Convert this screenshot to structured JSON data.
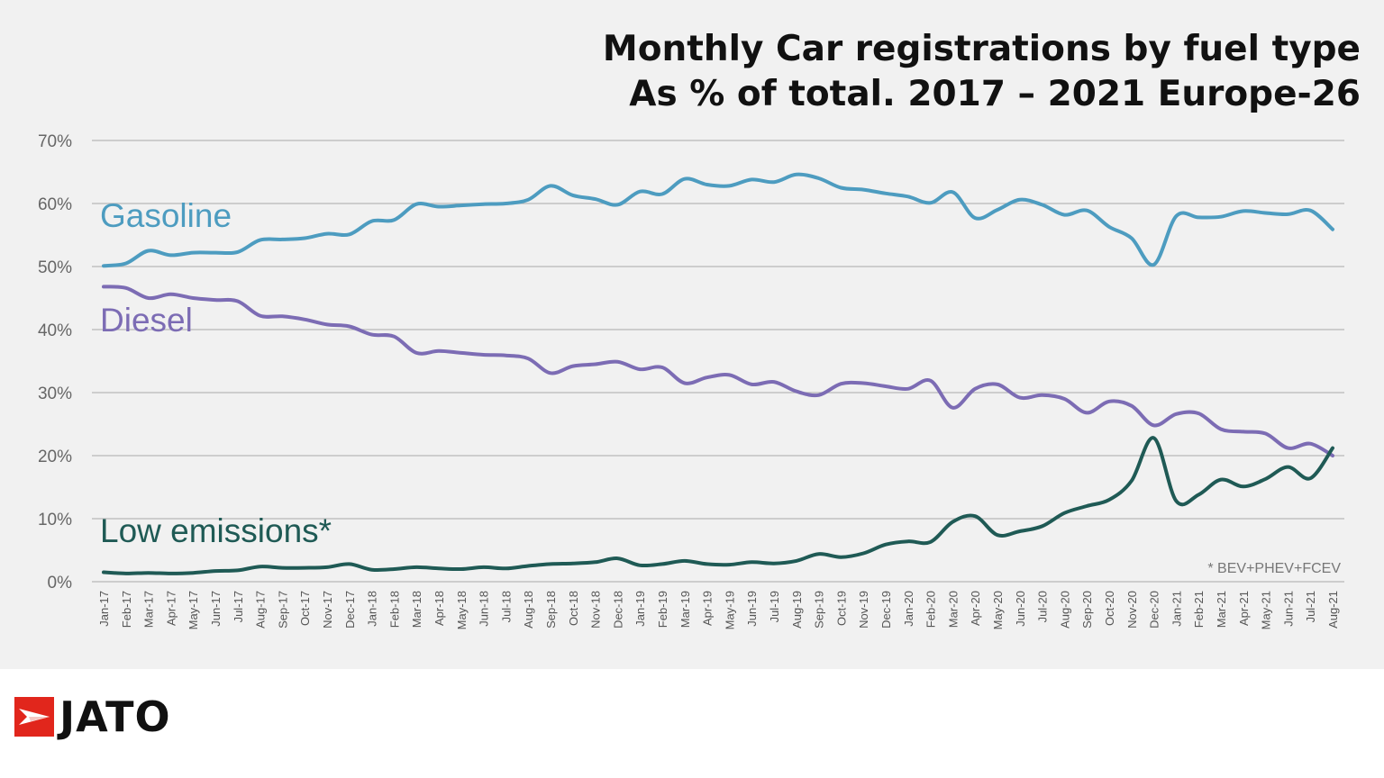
{
  "title_line1": "Monthly Car registrations by fuel type",
  "title_line2": "As % of total. 2017 – 2021 Europe-26",
  "footnote": "* BEV+PHEV+FCEV",
  "logo_text": "JATO",
  "colors": {
    "gasoline": "#4d9cc0",
    "diesel": "#7c6cb4",
    "low_emissions": "#1f5a55",
    "grid": "#b8b8b8",
    "logo_red": "#e1261c"
  },
  "chart_data": {
    "type": "line",
    "ylim": [
      0,
      70
    ],
    "y_ticks": [
      "0%",
      "10%",
      "20%",
      "30%",
      "40%",
      "50%",
      "60%",
      "70%"
    ],
    "grid": true,
    "legend": "inline labels at left of each line",
    "categories": [
      "Jan-17",
      "Feb-17",
      "Mar-17",
      "Apr-17",
      "May-17",
      "Jun-17",
      "Jul-17",
      "Aug-17",
      "Sep-17",
      "Oct-17",
      "Nov-17",
      "Dec-17",
      "Jan-18",
      "Feb-18",
      "Mar-18",
      "Apr-18",
      "May-18",
      "Jun-18",
      "Jul-18",
      "Aug-18",
      "Sep-18",
      "Oct-18",
      "Nov-18",
      "Dec-18",
      "Jan-19",
      "Feb-19",
      "Mar-19",
      "Apr-19",
      "May-19",
      "Jun-19",
      "Jul-19",
      "Aug-19",
      "Sep-19",
      "Oct-19",
      "Nov-19",
      "Dec-19",
      "Jan-20",
      "Feb-20",
      "Mar-20",
      "Apr-20",
      "May-20",
      "Jun-20",
      "Jul-20",
      "Aug-20",
      "Sep-20",
      "Oct-20",
      "Nov-20",
      "Dec-20",
      "Jan-21",
      "Feb-21",
      "Mar-21",
      "Apr-21",
      "May-21",
      "Jun-21",
      "Jul-21",
      "Aug-21"
    ],
    "series": [
      {
        "name": "Gasoline",
        "color_key": "gasoline",
        "values": [
          50.1,
          50.5,
          52.5,
          51.8,
          52.2,
          52.2,
          52.3,
          54.2,
          54.3,
          54.5,
          55.2,
          55.1,
          57.2,
          57.4,
          59.9,
          59.5,
          59.7,
          59.9,
          60.0,
          60.6,
          62.8,
          61.3,
          60.7,
          59.8,
          61.9,
          61.5,
          63.9,
          63.0,
          62.8,
          63.8,
          63.4,
          64.6,
          64.0,
          62.5,
          62.2,
          61.6,
          61.1,
          60.1,
          61.8,
          57.7,
          59.0,
          60.6,
          59.8,
          58.2,
          58.9,
          56.3,
          54.5,
          50.3,
          58.0,
          57.8,
          57.9,
          58.8,
          58.5,
          58.3,
          58.9,
          55.9
        ]
      },
      {
        "name": "Diesel",
        "color_key": "diesel",
        "values": [
          46.8,
          46.6,
          45.0,
          45.6,
          45.0,
          44.7,
          44.5,
          42.2,
          42.1,
          41.6,
          40.8,
          40.5,
          39.2,
          38.9,
          36.3,
          36.6,
          36.3,
          36.0,
          35.9,
          35.4,
          33.1,
          34.2,
          34.5,
          34.9,
          33.7,
          34.0,
          31.5,
          32.4,
          32.8,
          31.3,
          31.7,
          30.2,
          29.6,
          31.4,
          31.5,
          31.0,
          30.6,
          31.9,
          27.6,
          30.6,
          31.3,
          29.2,
          29.6,
          29.0,
          26.8,
          28.6,
          27.9,
          24.8,
          26.6,
          26.7,
          24.2,
          23.8,
          23.5,
          21.2,
          21.9,
          20.0
        ]
      },
      {
        "name": "Low emissions*",
        "color_key": "low_emissions",
        "values": [
          1.5,
          1.3,
          1.4,
          1.3,
          1.4,
          1.7,
          1.8,
          2.4,
          2.2,
          2.2,
          2.3,
          2.8,
          1.9,
          2.0,
          2.3,
          2.1,
          2.0,
          2.3,
          2.1,
          2.5,
          2.8,
          2.9,
          3.1,
          3.7,
          2.6,
          2.8,
          3.3,
          2.8,
          2.7,
          3.1,
          2.9,
          3.3,
          4.4,
          3.9,
          4.5,
          5.9,
          6.4,
          6.3,
          9.5,
          10.4,
          7.4,
          8.0,
          8.8,
          10.9,
          12.0,
          13.0,
          16.0,
          22.8,
          12.8,
          13.8,
          16.2,
          15.1,
          16.3,
          18.2,
          16.4,
          21.2
        ]
      }
    ]
  }
}
